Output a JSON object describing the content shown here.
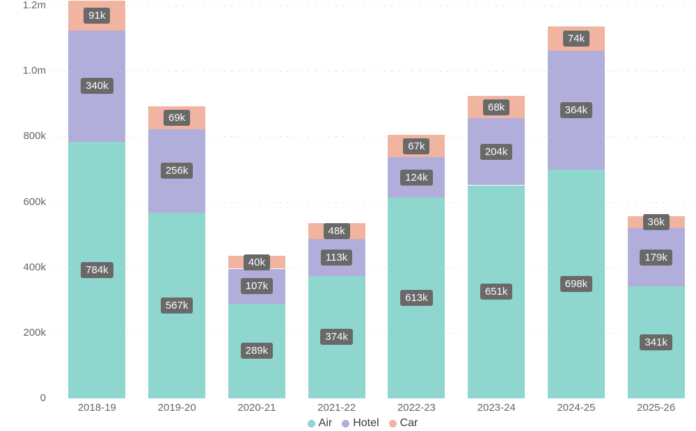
{
  "chart_data": {
    "type": "bar",
    "variant": "stacked-column",
    "title": "",
    "categories": [
      "2018-19",
      "2019-20",
      "2020-21",
      "2021-22",
      "2022-23",
      "2023-24",
      "2024-25",
      "2025-26"
    ],
    "series": [
      {
        "name": "Air",
        "color": "#8FD6CE",
        "values": [
          784,
          567,
          289,
          374,
          613,
          651,
          698,
          341
        ],
        "labels": [
          "784k",
          "567k",
          "289k",
          "374k",
          "613k",
          "651k",
          "698k",
          "341k"
        ]
      },
      {
        "name": "Hotel",
        "color": "#B1AEDB",
        "values": [
          340,
          256,
          107,
          113,
          124,
          204,
          364,
          179
        ],
        "labels": [
          "340k",
          "256k",
          "107k",
          "113k",
          "124k",
          "204k",
          "364k",
          "179k"
        ]
      },
      {
        "name": "Car",
        "color": "#F0B4A0",
        "values": [
          91,
          69,
          40,
          48,
          67,
          68,
          74,
          36
        ],
        "labels": [
          "91k",
          "69k",
          "40k",
          "48k",
          "67k",
          "68k",
          "74k",
          "36k"
        ]
      }
    ],
    "unit": "thousands",
    "ylim": [
      0,
      1200
    ],
    "y_ticks": [
      {
        "value": 0,
        "label": "0"
      },
      {
        "value": 200,
        "label": "200k"
      },
      {
        "value": 400,
        "label": "400k"
      },
      {
        "value": 600,
        "label": "600k"
      },
      {
        "value": 800,
        "label": "800k"
      },
      {
        "value": 1000,
        "label": "1.0m"
      },
      {
        "value": 1200,
        "label": "1.2m"
      }
    ],
    "legend_position": "bottom",
    "grid": "horizontal-dotted",
    "colors": {
      "background": "#FFFFFF",
      "label_box_bg": "#696969",
      "label_text": "#FBFBFB",
      "axis_text": "#666666",
      "gridline": "#DBDBDB",
      "legend_text": "#3B3B3B"
    }
  }
}
